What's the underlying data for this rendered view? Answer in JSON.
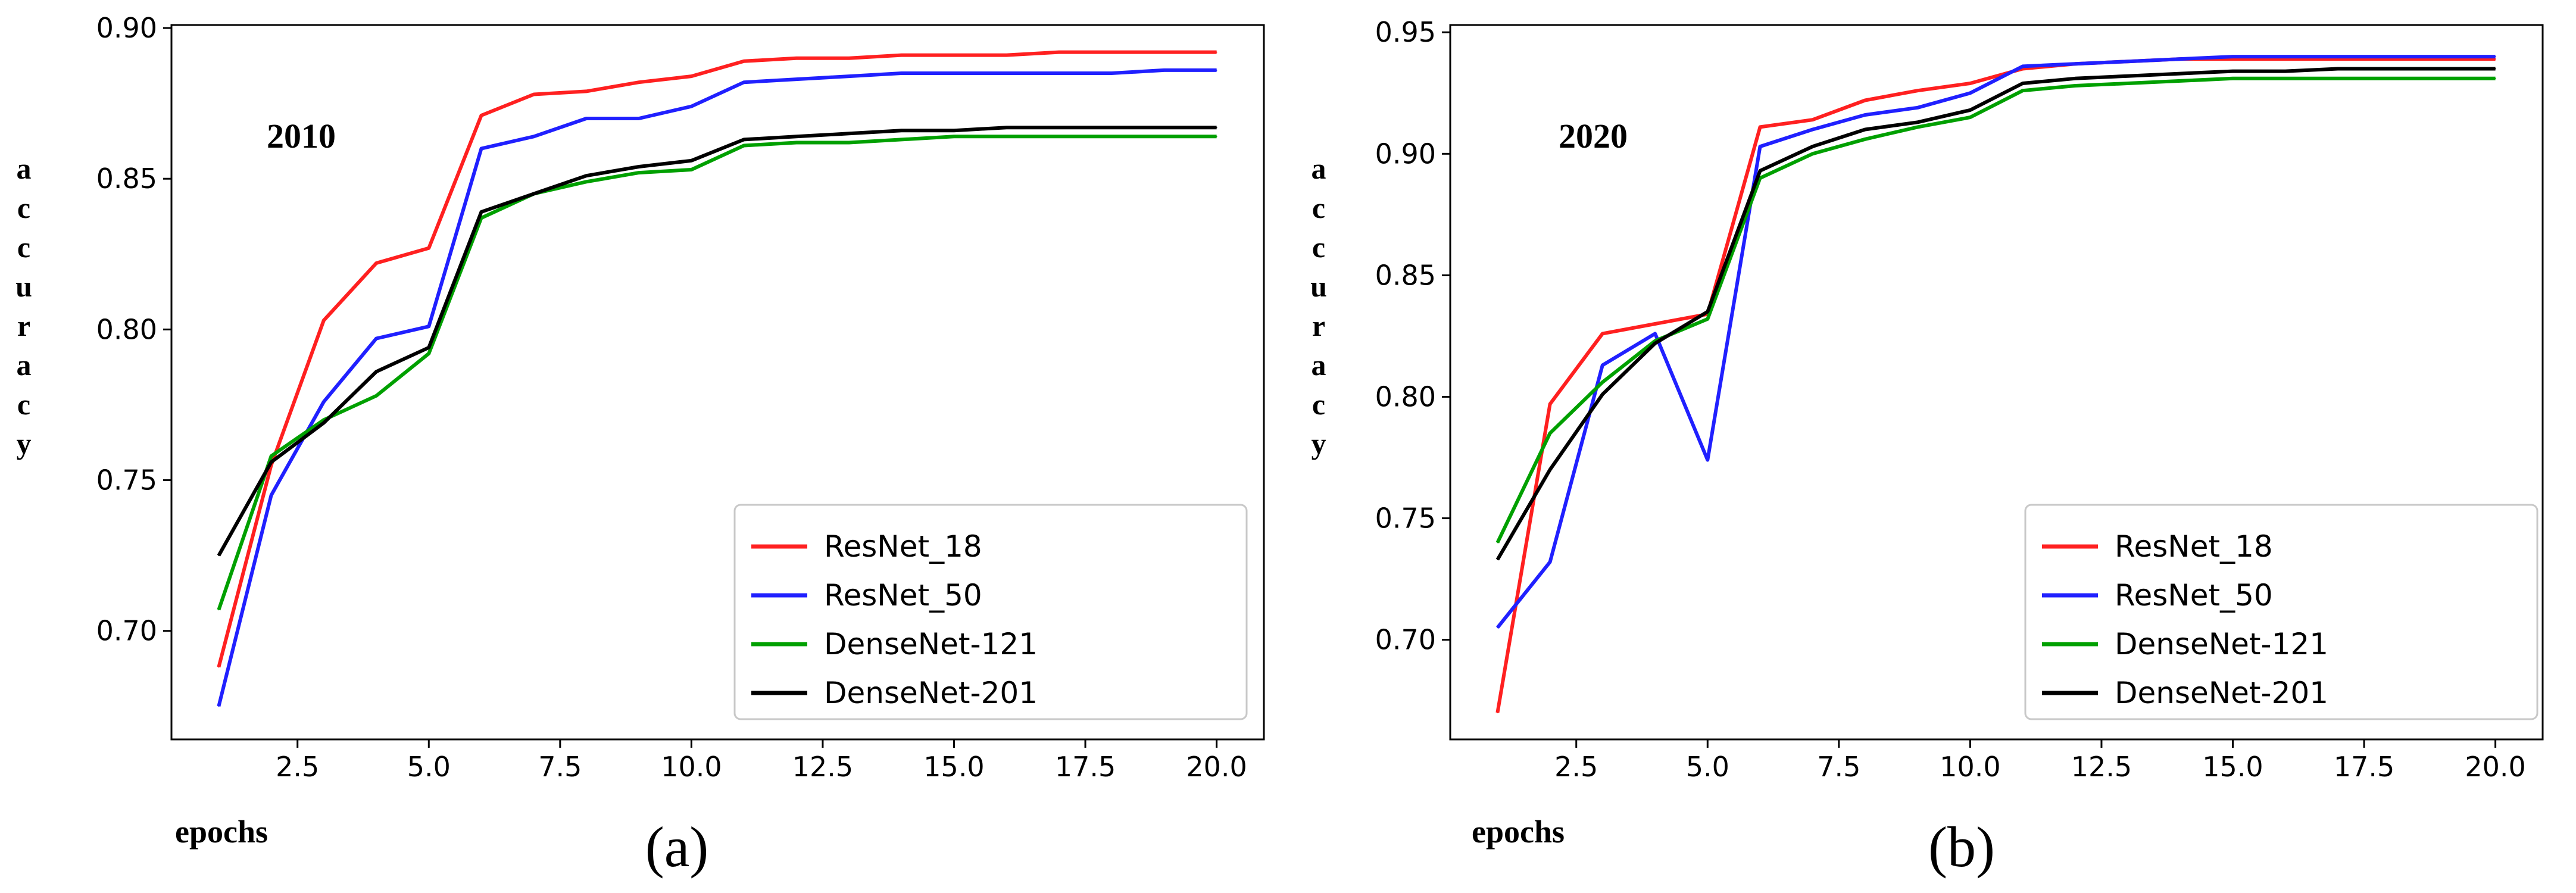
{
  "chart_data": [
    {
      "type": "line",
      "panel_label": "(a)",
      "annotation": "2010",
      "ylabel": "accuracy",
      "xlabel": "epochs",
      "xlim": [
        0.1,
        20.9
      ],
      "ylim": [
        0.664,
        0.901
      ],
      "x_ticks": [
        "2.5",
        "5.0",
        "7.5",
        "10.0",
        "12.5",
        "15.0",
        "17.5",
        "20.0"
      ],
      "y_ticks": [
        "0.70",
        "0.75",
        "0.80",
        "0.85",
        "0.90"
      ],
      "x": [
        1,
        2,
        3,
        4,
        5,
        6,
        7,
        8,
        9,
        10,
        11,
        12,
        13,
        14,
        15,
        16,
        17,
        18,
        19,
        20
      ],
      "legend_location": "lower-right",
      "series": [
        {
          "name": "ResNet_18",
          "color": "#ff2020",
          "values": [
            0.688,
            0.755,
            0.803,
            0.822,
            0.827,
            0.871,
            0.878,
            0.879,
            0.882,
            0.884,
            0.889,
            0.89,
            0.89,
            0.891,
            0.891,
            0.891,
            0.892,
            0.892,
            0.892,
            0.892
          ]
        },
        {
          "name": "ResNet_50",
          "color": "#2020ff",
          "values": [
            0.675,
            0.745,
            0.776,
            0.797,
            0.801,
            0.86,
            0.864,
            0.87,
            0.87,
            0.874,
            0.882,
            0.883,
            0.884,
            0.885,
            0.885,
            0.885,
            0.885,
            0.885,
            0.886,
            0.886
          ]
        },
        {
          "name": "DenseNet-121",
          "color": "#00a000",
          "values": [
            0.707,
            0.758,
            0.77,
            0.778,
            0.792,
            0.837,
            0.845,
            0.849,
            0.852,
            0.853,
            0.861,
            0.862,
            0.862,
            0.863,
            0.864,
            0.864,
            0.864,
            0.864,
            0.864,
            0.864
          ]
        },
        {
          "name": "DenseNet-201",
          "color": "#000000",
          "values": [
            0.725,
            0.756,
            0.769,
            0.786,
            0.794,
            0.839,
            0.845,
            0.851,
            0.854,
            0.856,
            0.863,
            0.864,
            0.865,
            0.866,
            0.866,
            0.867,
            0.867,
            0.867,
            0.867,
            0.867
          ]
        }
      ]
    },
    {
      "type": "line",
      "panel_label": "(b)",
      "annotation": "2020",
      "ylabel": "accuracy",
      "xlabel": "epochs",
      "xlim": [
        0.1,
        20.9
      ],
      "ylim": [
        0.659,
        0.953
      ],
      "x_ticks": [
        "2.5",
        "5.0",
        "7.5",
        "10.0",
        "12.5",
        "15.0",
        "17.5",
        "20.0"
      ],
      "y_ticks": [
        "0.70",
        "0.75",
        "0.80",
        "0.85",
        "0.90",
        "0.95"
      ],
      "x": [
        1,
        2,
        3,
        4,
        5,
        6,
        7,
        8,
        9,
        10,
        11,
        12,
        13,
        14,
        15,
        16,
        17,
        18,
        19,
        20
      ],
      "legend_location": "lower-right",
      "series": [
        {
          "name": "ResNet_18",
          "color": "#ff2020",
          "values": [
            0.67,
            0.797,
            0.826,
            0.83,
            0.834,
            0.911,
            0.914,
            0.922,
            0.926,
            0.929,
            0.935,
            0.937,
            0.938,
            0.939,
            0.939,
            0.939,
            0.939,
            0.939,
            0.939,
            0.939
          ]
        },
        {
          "name": "ResNet_50",
          "color": "#2020ff",
          "values": [
            0.705,
            0.732,
            0.813,
            0.826,
            0.774,
            0.903,
            0.91,
            0.916,
            0.919,
            0.925,
            0.936,
            0.937,
            0.938,
            0.939,
            0.94,
            0.94,
            0.94,
            0.94,
            0.94,
            0.94
          ]
        },
        {
          "name": "DenseNet-121",
          "color": "#00a000",
          "values": [
            0.74,
            0.785,
            0.806,
            0.823,
            0.832,
            0.89,
            0.9,
            0.906,
            0.911,
            0.915,
            0.926,
            0.928,
            0.929,
            0.93,
            0.931,
            0.931,
            0.931,
            0.931,
            0.931,
            0.931
          ]
        },
        {
          "name": "DenseNet-201",
          "color": "#000000",
          "values": [
            0.733,
            0.77,
            0.801,
            0.822,
            0.835,
            0.893,
            0.903,
            0.91,
            0.913,
            0.918,
            0.929,
            0.931,
            0.932,
            0.933,
            0.934,
            0.934,
            0.935,
            0.935,
            0.935,
            0.935
          ]
        }
      ]
    }
  ]
}
